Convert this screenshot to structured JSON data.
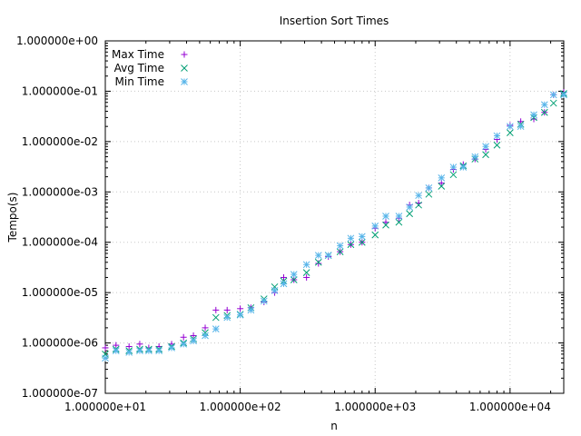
{
  "chart_data": {
    "type": "scatter",
    "title": "Insertion Sort Times",
    "xlabel": "n",
    "ylabel": "Tempo(s)",
    "x_scale": "log",
    "y_scale": "log",
    "xlim": [
      10,
      25000
    ],
    "ylim": [
      1e-07,
      1
    ],
    "grid": true,
    "legend_position": "top-left",
    "x_ticks": [
      {
        "value": 10,
        "label": "1.000000e+01"
      },
      {
        "value": 100,
        "label": "1.000000e+02"
      },
      {
        "value": 1000,
        "label": "1.000000e+03"
      },
      {
        "value": 10000,
        "label": "1.000000e+04"
      }
    ],
    "y_ticks": [
      {
        "value": 1e-07,
        "label": "1.000000e-07"
      },
      {
        "value": 1e-06,
        "label": "1.000000e-06"
      },
      {
        "value": 1e-05,
        "label": "1.000000e-05"
      },
      {
        "value": 0.0001,
        "label": "1.000000e-04"
      },
      {
        "value": 0.001,
        "label": "1.000000e-03"
      },
      {
        "value": 0.01,
        "label": "1.000000e-02"
      },
      {
        "value": 0.1,
        "label": "1.000000e-01"
      },
      {
        "value": 1,
        "label": "1.000000e+00"
      }
    ],
    "x": [
      10,
      12,
      15,
      18,
      21,
      25,
      31,
      38,
      45,
      55,
      66,
      80,
      100,
      120,
      150,
      180,
      210,
      250,
      310,
      380,
      450,
      550,
      660,
      800,
      1000,
      1200,
      1500,
      1800,
      2100,
      2500,
      3100,
      3800,
      4500,
      5500,
      6600,
      8000,
      10000,
      12000,
      15000,
      18000,
      21000,
      25000
    ],
    "series": [
      {
        "name": "Max Time",
        "marker": "plus",
        "color": "#9400d3",
        "values": [
          8e-07,
          9e-07,
          8.5e-07,
          9.5e-07,
          8e-07,
          8.5e-07,
          9.5e-07,
          1.3e-06,
          1.4e-06,
          2e-06,
          4.5e-06,
          4.5e-06,
          4.8e-06,
          5e-06,
          6.5e-06,
          1e-05,
          2e-05,
          1.8e-05,
          2e-05,
          3.8e-05,
          5.2e-05,
          6.5e-05,
          9e-05,
          0.0001,
          0.00019,
          0.00025,
          0.0003,
          0.00055,
          0.0006,
          0.0012,
          0.0015,
          0.0028,
          0.0035,
          0.0045,
          0.007,
          0.011,
          0.021,
          0.025,
          0.028,
          0.038,
          0.085,
          0.095
        ]
      },
      {
        "name": "Avg Time",
        "marker": "cross",
        "color": "#009e73",
        "values": [
          6e-07,
          7.5e-07,
          7e-07,
          7.5e-07,
          7.5e-07,
          7.5e-07,
          8.5e-07,
          1e-06,
          1.2e-06,
          1.6e-06,
          3.2e-06,
          3.5e-06,
          3.7e-06,
          5e-06,
          7.5e-06,
          1.3e-05,
          1.7e-05,
          1.8e-05,
          2.5e-05,
          4e-05,
          5.5e-05,
          6.5e-05,
          9e-05,
          0.0001,
          0.00014,
          0.00022,
          0.00025,
          0.00037,
          0.00055,
          0.0009,
          0.0013,
          0.0022,
          0.0033,
          0.0045,
          0.0055,
          0.0085,
          0.015,
          0.022,
          0.03,
          0.038,
          0.058,
          0.09
        ]
      },
      {
        "name": "Min Time",
        "marker": "star",
        "color": "#56b4e9",
        "values": [
          5e-07,
          7e-07,
          6.5e-07,
          7e-07,
          7e-07,
          7e-07,
          8e-07,
          9.5e-07,
          1.1e-06,
          1.4e-06,
          1.9e-06,
          3.2e-06,
          3.6e-06,
          4.5e-06,
          6.8e-06,
          1.1e-05,
          1.5e-05,
          2.3e-05,
          3.6e-05,
          5.5e-05,
          5.5e-05,
          8.5e-05,
          0.00012,
          0.00013,
          0.00021,
          0.00033,
          0.00033,
          0.0005,
          0.00085,
          0.0012,
          0.0019,
          0.0031,
          0.0031,
          0.005,
          0.008,
          0.013,
          0.02,
          0.02,
          0.034,
          0.054,
          0.085,
          0.085
        ]
      }
    ]
  }
}
